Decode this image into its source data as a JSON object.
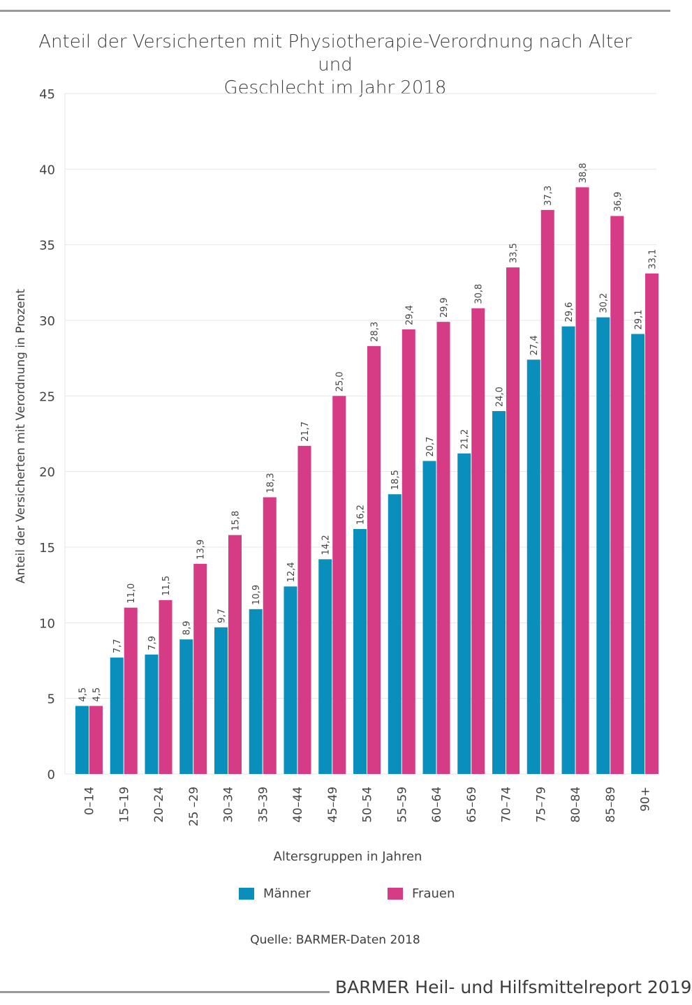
{
  "chart_data": {
    "type": "bar",
    "title": "Anteil der Versicherten mit Physiotherapie-Verordnung nach Alter und Geschlecht im Jahr 2018",
    "title_lines": [
      "Anteil der Versicherten mit Physiotherapie-Verordnung nach Alter und",
      "Geschlecht im Jahr 2018"
    ],
    "xlabel": "Altersgruppen in Jahren",
    "ylabel": "Anteil der Versicherten mit Verordnung in Prozent",
    "ylim": [
      0,
      45
    ],
    "yticks": [
      "0",
      "5",
      "10",
      "15",
      "20",
      "25",
      "30",
      "35",
      "40",
      "45"
    ],
    "grid": true,
    "legend_position": "bottom",
    "categories": [
      "0–14",
      "15–19",
      "20–24",
      "25 –29",
      "30–34",
      "35–39",
      "40–44",
      "45–49",
      "50–54",
      "55–59",
      "60–64",
      "65–69",
      "70–74",
      "75–79",
      "80–84",
      "85–89",
      "90+"
    ],
    "series": [
      {
        "name": "Männer",
        "color": "#0a8fbd",
        "values": [
          4.5,
          7.7,
          7.9,
          8.9,
          9.7,
          10.9,
          12.4,
          14.2,
          16.2,
          18.5,
          20.7,
          21.2,
          24.0,
          27.4,
          29.6,
          30.2,
          29.1
        ],
        "labels": [
          "4,5",
          "7,7",
          "7,9",
          "8,9",
          "9,7",
          "10,9",
          "12,4",
          "14,2",
          "16,2",
          "18,5",
          "20,7",
          "21,2",
          "24,0",
          "27,4",
          "29,6",
          "30,2",
          "29,1"
        ]
      },
      {
        "name": "Frauen",
        "color": "#d63b86",
        "values": [
          4.5,
          11.0,
          11.5,
          13.9,
          15.8,
          18.3,
          21.7,
          25.0,
          28.3,
          29.4,
          29.9,
          30.8,
          33.5,
          37.3,
          38.8,
          36.9,
          33.1
        ],
        "labels": [
          "4,5",
          "11,0",
          "11,5",
          "13,9",
          "15,8",
          "18,3",
          "21,7",
          "25,0",
          "28,3",
          "29,4",
          "29,9",
          "30,8",
          "33,5",
          "37,3",
          "38,8",
          "36,9",
          "33,1"
        ]
      }
    ]
  },
  "source_note": "Quelle: BARMER-Daten 2018",
  "footer_brand": "BARMER Heil- und Hilfsmittelreport 2019"
}
